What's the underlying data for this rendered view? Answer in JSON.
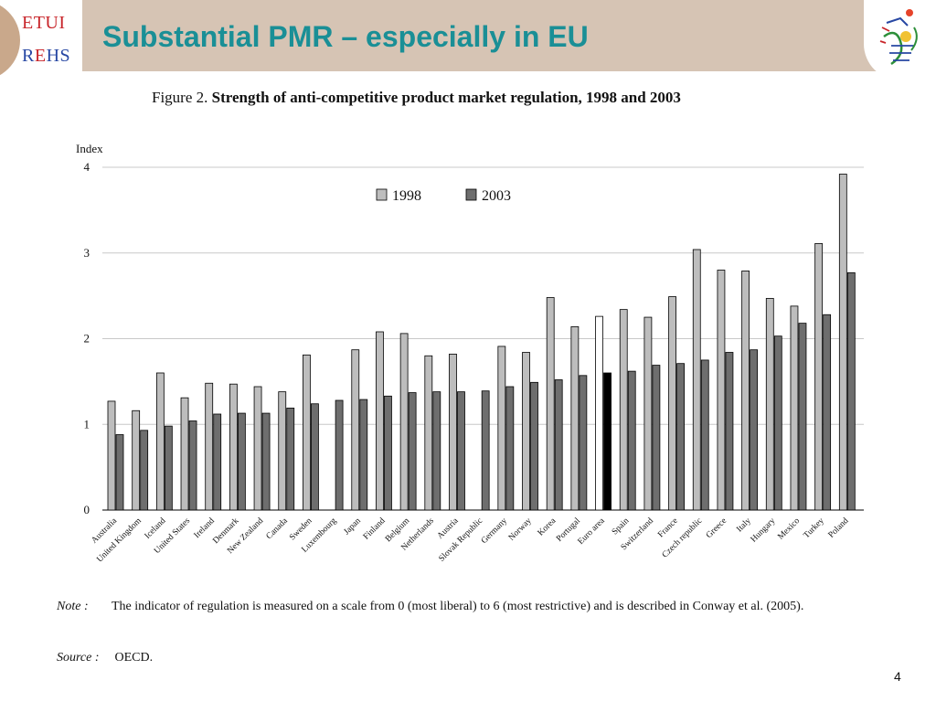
{
  "slide": {
    "title": "Substantial PMR – especially in EU",
    "logo_left": {
      "line1": "ETUI",
      "line2_a": "R",
      "line2_b": "E",
      "line2_c": "HS"
    },
    "page_number": "4"
  },
  "figure": {
    "caption_prefix": "Figure 2.",
    "caption_bold": "Strength of anti-competitive product market regulation, 1998 and 2003",
    "note_label": "Note :",
    "note_text": "The indicator of regulation is measured on a scale from 0 (most liberal) to 6 (most restrictive) and is described in Conway et al. (2005).",
    "source_label": "Source :",
    "source_text": "OECD."
  },
  "colors": {
    "bar_1998": "#bdbdbd",
    "bar_2003": "#6e6e6e",
    "euro_1998": "#ffffff",
    "euro_2003": "#000000",
    "title": "#1a8f96",
    "header": "#d6c4b4"
  },
  "chart_data": {
    "type": "bar",
    "ylabel": "Index",
    "ylim": [
      0,
      4
    ],
    "yticks": [
      0,
      1,
      2,
      3,
      4
    ],
    "grid": true,
    "legend": "top-center",
    "categories": [
      "Australia",
      "United Kingdom",
      "Iceland",
      "United States",
      "Ireland",
      "Denmark",
      "New Zealand",
      "Canada",
      "Sweden",
      "Luxembourg",
      "Japan",
      "Finland",
      "Belgium",
      "Netherlands",
      "Austria",
      "Slovak Republic",
      "Germany",
      "Norway",
      "Korea",
      "Portugal",
      "Euro area",
      "Spain",
      "Switzerland",
      "France",
      "Czech republic",
      "Greece",
      "Italy",
      "Hungary",
      "Mexico",
      "Turkey",
      "Poland"
    ],
    "series": [
      {
        "name": "1998",
        "values": [
          1.27,
          1.16,
          1.6,
          1.31,
          1.48,
          1.47,
          1.44,
          1.38,
          1.81,
          null,
          1.87,
          2.08,
          2.06,
          1.8,
          1.82,
          null,
          1.91,
          1.84,
          2.48,
          2.14,
          2.26,
          2.34,
          2.25,
          2.49,
          3.04,
          2.8,
          2.79,
          2.47,
          2.38,
          3.11,
          3.92
        ]
      },
      {
        "name": "2003",
        "values": [
          0.88,
          0.93,
          0.98,
          1.04,
          1.12,
          1.13,
          1.13,
          1.19,
          1.24,
          1.28,
          1.29,
          1.33,
          1.37,
          1.38,
          1.38,
          1.39,
          1.44,
          1.49,
          1.52,
          1.57,
          1.6,
          1.62,
          1.69,
          1.71,
          1.75,
          1.84,
          1.87,
          2.03,
          2.18,
          2.28,
          2.77
        ]
      }
    ],
    "highlight_category": "Euro area"
  }
}
